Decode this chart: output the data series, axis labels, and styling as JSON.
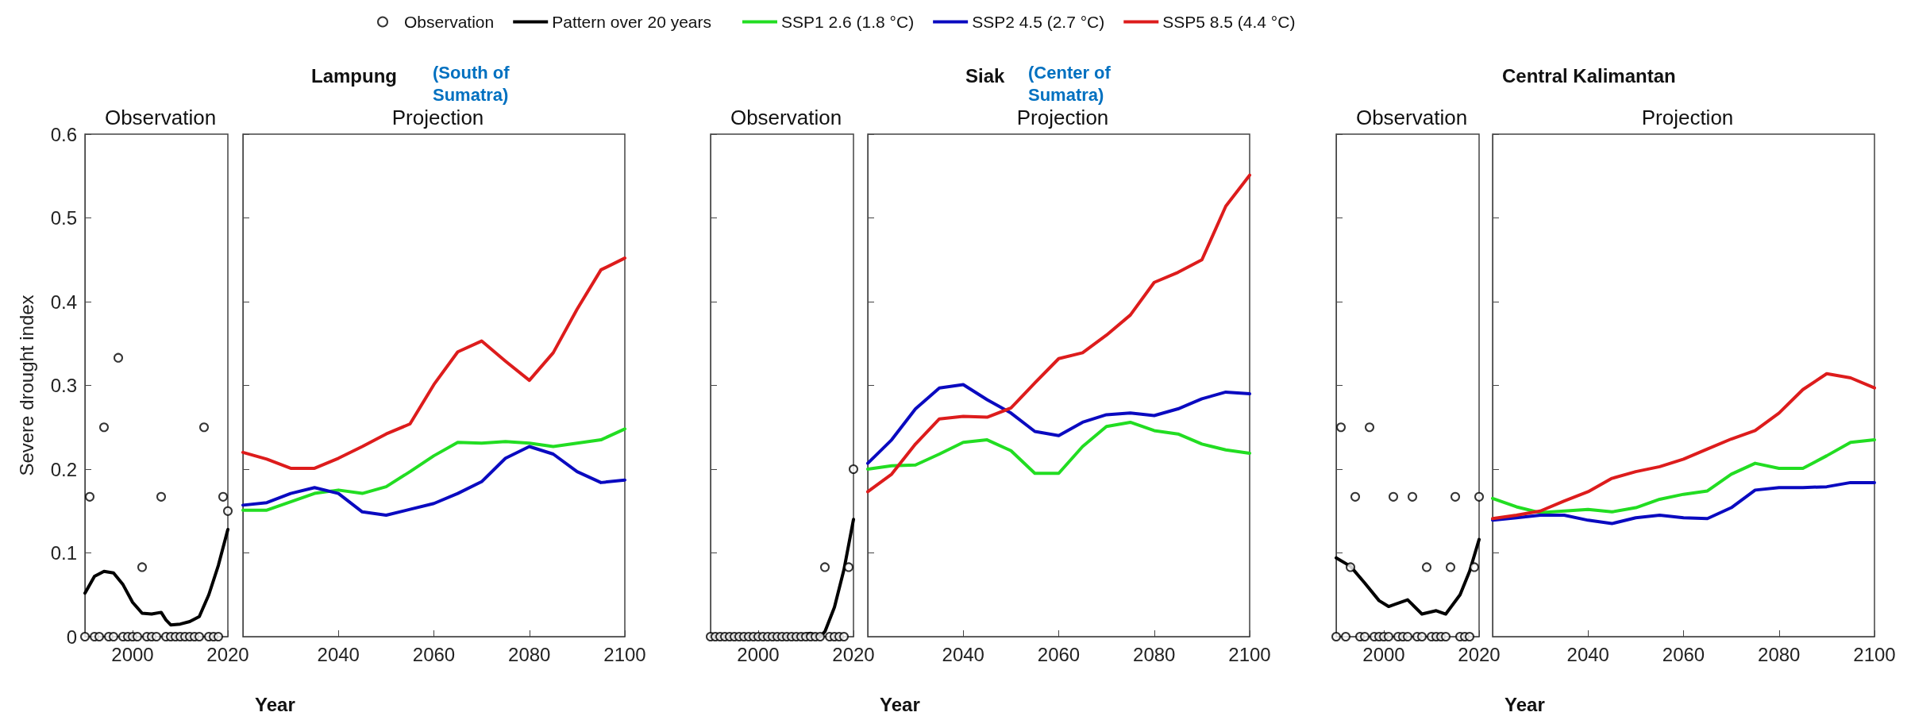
{
  "chart_data": [
    {
      "type": "line",
      "title": "Observation",
      "ylabel": "Severe drought index",
      "xlim": [
        1990,
        2020
      ],
      "xticks": [
        2000,
        2020
      ],
      "ylim": [
        0,
        0.6
      ],
      "yticks": [
        0,
        0.1,
        0.2,
        0.3,
        0.4,
        0.5,
        0.6
      ],
      "legend": "top",
      "line_style": "solid",
      "series": [
        {
          "name": "Observation",
          "type": "scatter",
          "marker": "circle",
          "color": "#000000",
          "x": [
            1990,
            1991,
            1992,
            1993,
            1994,
            1995,
            1996,
            1997,
            1998,
            1999,
            2000,
            2001,
            2002,
            2003,
            2004,
            2005,
            2006,
            2007,
            2008,
            2009,
            2010,
            2011,
            2012,
            2013,
            2014,
            2015,
            2016,
            2017,
            2018,
            2019,
            2020
          ],
          "values": [
            0,
            0.167,
            0,
            0,
            0.25,
            0,
            0,
            0.333,
            0,
            0,
            0,
            0,
            0.083,
            0,
            0,
            0,
            0.167,
            0,
            0,
            0,
            0,
            0,
            0,
            0,
            0,
            0.25,
            0,
            0,
            0,
            0.167,
            0.15
          ]
        },
        {
          "name": "Pattern over 20 years",
          "marker": "none",
          "color": "#000000",
          "x": [
            1990,
            1992,
            1994,
            1996,
            1998,
            2000,
            2002,
            2004,
            2006,
            2007,
            2008,
            2010,
            2012,
            2014,
            2016,
            2018,
            2020
          ],
          "values": [
            0.052,
            0.072,
            0.078,
            0.076,
            0.062,
            0.041,
            0.028,
            0.027,
            0.029,
            0.02,
            0.014,
            0.015,
            0.018,
            0.024,
            0.05,
            0.085,
            0.128
          ]
        }
      ]
    },
    {
      "type": "line",
      "title": "Lampung",
      "subtitle": "(South of Sumatra)",
      "annotations": [
        "Projection"
      ],
      "xlabel": "Year",
      "xlim": [
        2020,
        2100
      ],
      "xticks": [
        2040,
        2060,
        2080,
        2100
      ],
      "ylim": [
        0,
        0.6
      ],
      "yticks": [
        0,
        0.1,
        0.2,
        0.3,
        0.4,
        0.5,
        0.6
      ],
      "tick_labels": "x",
      "legend": "top",
      "marker": "none",
      "line_style": "solid",
      "x": [
        2020,
        2025,
        2030,
        2035,
        2040,
        2045,
        2050,
        2055,
        2060,
        2065,
        2070,
        2075,
        2080,
        2085,
        2090,
        2095,
        2100
      ],
      "series": [
        {
          "name": "SSP1 2.6 (1.8 °C)",
          "color": "#22dd22",
          "values": [
            0.151,
            0.151,
            0.161,
            0.171,
            0.175,
            0.171,
            0.179,
            0.197,
            0.216,
            0.232,
            0.231,
            0.233,
            0.231,
            0.227,
            0.231,
            0.235,
            0.248
          ]
        },
        {
          "name": "SSP2 4.5 (2.7 °C)",
          "color": "#0a0ac0",
          "values": [
            0.157,
            0.16,
            0.171,
            0.178,
            0.171,
            0.149,
            0.145,
            0.152,
            0.159,
            0.171,
            0.185,
            0.213,
            0.227,
            0.218,
            0.197,
            0.184,
            0.187
          ]
        },
        {
          "name": "SSP5 8.5 (4.4 °C)",
          "color": "#dd1c1c",
          "values": [
            0.22,
            0.212,
            0.201,
            0.201,
            0.213,
            0.227,
            0.242,
            0.254,
            0.301,
            0.34,
            0.353,
            0.329,
            0.306,
            0.339,
            0.391,
            0.438,
            0.452
          ]
        }
      ]
    },
    {
      "type": "line",
      "title": "Observation",
      "xlim": [
        1990,
        2020
      ],
      "xticks": [
        2000,
        2020
      ],
      "ylim": [
        0,
        0.6
      ],
      "yticks": [
        0,
        0.1,
        0.2,
        0.3,
        0.4,
        0.5,
        0.6
      ],
      "tick_labels": "x",
      "line_style": "solid",
      "series": [
        {
          "type": "scatter",
          "marker": "circle",
          "color": "#000000",
          "x": [
            1990,
            1991,
            1992,
            1993,
            1994,
            1995,
            1996,
            1997,
            1998,
            1999,
            2000,
            2001,
            2002,
            2003,
            2004,
            2005,
            2006,
            2007,
            2008,
            2009,
            2010,
            2011,
            2012,
            2013,
            2014,
            2015,
            2016,
            2017,
            2018,
            2019,
            2020
          ],
          "values": [
            0,
            0,
            0,
            0,
            0,
            0,
            0,
            0,
            0,
            0,
            0,
            0,
            0,
            0,
            0,
            0,
            0,
            0,
            0,
            0,
            0,
            0,
            0,
            0,
            0.083,
            0,
            0,
            0,
            0,
            0.083,
            0.2
          ]
        },
        {
          "marker": "none",
          "color": "#000000",
          "x": [
            1990,
            2008,
            2010,
            2011,
            2012,
            2013,
            2014,
            2016,
            2018,
            2020
          ],
          "values": [
            0,
            0,
            0.003,
            0.004,
            0.002,
            0,
            0.006,
            0.035,
            0.08,
            0.14
          ]
        }
      ]
    },
    {
      "type": "line",
      "title": "Siak",
      "subtitle": "(Center of Sumatra)",
      "annotations": [
        "Projection"
      ],
      "xlabel": "Year",
      "xlim": [
        2020,
        2100
      ],
      "xticks": [
        2040,
        2060,
        2080,
        2100
      ],
      "ylim": [
        0,
        0.6
      ],
      "yticks": [
        0,
        0.1,
        0.2,
        0.3,
        0.4,
        0.5,
        0.6
      ],
      "tick_labels": "x",
      "marker": "none",
      "line_style": "solid",
      "x": [
        2020,
        2025,
        2030,
        2035,
        2040,
        2045,
        2050,
        2055,
        2060,
        2065,
        2070,
        2075,
        2080,
        2085,
        2090,
        2095,
        2100
      ],
      "series": [
        {
          "color": "#22dd22",
          "values": [
            0.2,
            0.204,
            0.205,
            0.218,
            0.232,
            0.235,
            0.222,
            0.195,
            0.195,
            0.227,
            0.251,
            0.256,
            0.246,
            0.242,
            0.23,
            0.223,
            0.219
          ]
        },
        {
          "color": "#0a0ac0",
          "values": [
            0.207,
            0.235,
            0.272,
            0.297,
            0.301,
            0.283,
            0.267,
            0.245,
            0.24,
            0.256,
            0.265,
            0.267,
            0.264,
            0.272,
            0.284,
            0.292,
            0.29
          ]
        },
        {
          "color": "#dd1c1c",
          "values": [
            0.173,
            0.194,
            0.23,
            0.26,
            0.263,
            0.262,
            0.273,
            0.303,
            0.332,
            0.339,
            0.36,
            0.384,
            0.423,
            0.435,
            0.45,
            0.514,
            0.551
          ]
        }
      ]
    },
    {
      "type": "line",
      "title": "Observation",
      "xlim": [
        1990,
        2020
      ],
      "xticks": [
        2000,
        2020
      ],
      "ylim": [
        0,
        0.6
      ],
      "yticks": [
        0,
        0.1,
        0.2,
        0.3,
        0.4,
        0.5,
        0.6
      ],
      "tick_labels": "x",
      "line_style": "solid",
      "series": [
        {
          "type": "scatter",
          "marker": "circle",
          "color": "#000000",
          "x": [
            1990,
            1991,
            1992,
            1993,
            1994,
            1995,
            1996,
            1997,
            1998,
            1999,
            2000,
            2001,
            2002,
            2003,
            2004,
            2005,
            2006,
            2007,
            2008,
            2009,
            2010,
            2011,
            2012,
            2013,
            2014,
            2015,
            2016,
            2017,
            2018,
            2019,
            2020
          ],
          "values": [
            0,
            0.25,
            0,
            0.083,
            0.167,
            0,
            0,
            0.25,
            0,
            0,
            0,
            0,
            0.167,
            0,
            0,
            0,
            0.167,
            0,
            0,
            0.083,
            0,
            0,
            0,
            0,
            0.083,
            0.167,
            0,
            0,
            0,
            0.083,
            0.167
          ]
        },
        {
          "marker": "none",
          "color": "#000000",
          "x": [
            1990,
            1993,
            1996,
            1999,
            2001,
            2005,
            2008,
            2011,
            2013,
            2016,
            2018,
            2020
          ],
          "values": [
            0.094,
            0.084,
            0.064,
            0.043,
            0.036,
            0.044,
            0.027,
            0.031,
            0.027,
            0.05,
            0.078,
            0.116
          ]
        }
      ]
    },
    {
      "type": "line",
      "title": "Central Kalimantan",
      "annotations": [
        "Projection"
      ],
      "xlabel": "Year",
      "xlim": [
        2020,
        2100
      ],
      "xticks": [
        2040,
        2060,
        2080,
        2100
      ],
      "ylim": [
        0,
        0.6
      ],
      "yticks": [
        0,
        0.1,
        0.2,
        0.3,
        0.4,
        0.5,
        0.6
      ],
      "tick_labels": "x",
      "marker": "none",
      "line_style": "solid",
      "x": [
        2020,
        2025,
        2030,
        2035,
        2040,
        2045,
        2050,
        2055,
        2060,
        2065,
        2070,
        2075,
        2080,
        2085,
        2090,
        2095,
        2100
      ],
      "series": [
        {
          "color": "#22dd22",
          "values": [
            0.165,
            0.155,
            0.148,
            0.15,
            0.152,
            0.149,
            0.154,
            0.164,
            0.17,
            0.174,
            0.194,
            0.207,
            0.201,
            0.201,
            0.216,
            0.232,
            0.235
          ]
        },
        {
          "color": "#0a0ac0",
          "values": [
            0.139,
            0.142,
            0.145,
            0.145,
            0.139,
            0.135,
            0.142,
            0.145,
            0.142,
            0.141,
            0.154,
            0.175,
            0.178,
            0.178,
            0.179,
            0.184,
            0.184
          ]
        },
        {
          "color": "#dd1c1c",
          "values": [
            0.141,
            0.145,
            0.15,
            0.162,
            0.173,
            0.189,
            0.197,
            0.203,
            0.212,
            0.224,
            0.236,
            0.246,
            0.267,
            0.295,
            0.314,
            0.309,
            0.297
          ]
        }
      ]
    }
  ]
}
